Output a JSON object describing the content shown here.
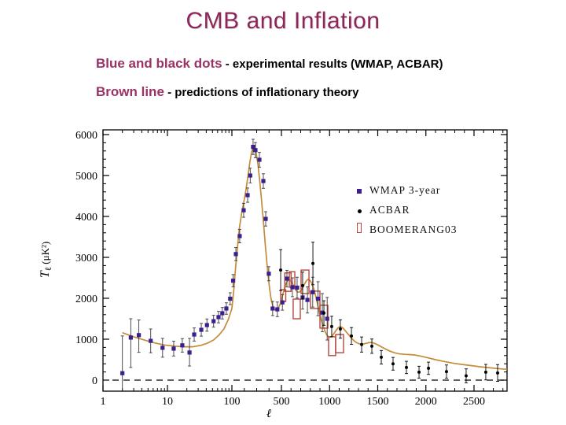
{
  "slide": {
    "title": "CMB and Inflation",
    "bullets": [
      {
        "lead": "Blue and black dots",
        "rest": " - experimental results (WMAP, ACBAR)"
      },
      {
        "lead": "Brown line",
        "rest": " - predictions of inflationary theory"
      }
    ]
  },
  "colors": {
    "title": "#8e2659",
    "lead": "#993366",
    "text": "#000000",
    "axis": "#000000",
    "wmap": "#3b1f8e",
    "acbar": "#000000",
    "boomerang": "#b4483c",
    "theory": "#c68b3a",
    "errorbar": "#3a3a3a"
  },
  "chart_data": {
    "type": "scatter",
    "title": "",
    "xlabel": "ℓ",
    "ylabel": {
      "symbol": "T",
      "sub": "ℓ",
      "units": "(μK²)"
    },
    "x_axis": {
      "scale": "log from 1 to 100, linear above 100",
      "major_ticks": [
        1,
        10,
        100,
        500,
        1000,
        1500,
        2000,
        2500
      ],
      "range": [
        1,
        2850
      ],
      "grid": false
    },
    "y_axis": {
      "major_ticks": [
        0,
        1000,
        2000,
        3000,
        4000,
        5000,
        6000
      ],
      "minor_step": 200,
      "range": [
        -270,
        6100
      ],
      "grid": false
    },
    "zero_line": {
      "style": "dashed",
      "y": 0
    },
    "legend_position": "upper right",
    "series": [
      {
        "name": "WMAP 3-year",
        "marker": "square",
        "color": "#3b1f8e",
        "points_format": [
          "l",
          "value_uK2",
          "err_up",
          "err_down"
        ],
        "points": [
          [
            2,
            170,
            910,
            640
          ],
          [
            2.7,
            1040,
            460,
            730
          ],
          [
            3.6,
            1100,
            370,
            420
          ],
          [
            5.5,
            960,
            290,
            290
          ],
          [
            8.4,
            790,
            230,
            230
          ],
          [
            12.5,
            770,
            180,
            180
          ],
          [
            17,
            850,
            165,
            165
          ],
          [
            22,
            675,
            345,
            330
          ],
          [
            26,
            1115,
            160,
            160
          ],
          [
            33.5,
            1230,
            155,
            155
          ],
          [
            41,
            1345,
            150,
            150
          ],
          [
            52,
            1440,
            145,
            145
          ],
          [
            62,
            1540,
            140,
            140
          ],
          [
            71,
            1635,
            140,
            140
          ],
          [
            82,
            1750,
            140,
            140
          ],
          [
            94,
            1990,
            145,
            145
          ],
          [
            110,
            2430,
            150,
            150
          ],
          [
            132,
            3080,
            160,
            160
          ],
          [
            163,
            3520,
            165,
            165
          ],
          [
            195,
            4150,
            170,
            170
          ],
          [
            227,
            4520,
            175,
            175
          ],
          [
            248,
            5000,
            180,
            180
          ],
          [
            271,
            5700,
            185,
            185
          ],
          [
            290,
            5620,
            185,
            185
          ],
          [
            322,
            5385,
            180,
            180
          ],
          [
            354,
            4865,
            178,
            178
          ],
          [
            373,
            3940,
            175,
            175
          ],
          [
            398,
            2600,
            172,
            172
          ],
          [
            429,
            1750,
            172,
            172
          ],
          [
            467,
            1730,
            178,
            178
          ],
          [
            510,
            1900,
            190,
            190
          ],
          [
            557,
            2480,
            205,
            205
          ],
          [
            614,
            2270,
            230,
            230
          ],
          [
            663,
            2260,
            255,
            255
          ],
          [
            720,
            2020,
            285,
            285
          ],
          [
            770,
            1960,
            320,
            320
          ],
          [
            825,
            2150,
            365,
            365
          ],
          [
            880,
            1990,
            415,
            415
          ],
          [
            925,
            1650,
            465,
            465
          ],
          [
            975,
            1500,
            520,
            520
          ]
        ]
      },
      {
        "name": "ACBAR",
        "marker": "dot",
        "color": "#000000",
        "points_format": [
          "l",
          "value_uK2",
          "err"
        ],
        "points": [
          [
            494,
            2690,
            500
          ],
          [
            720,
            2310,
            330
          ],
          [
            827,
            2850,
            520
          ],
          [
            941,
            1640,
            300
          ],
          [
            1022,
            1310,
            250
          ],
          [
            1112,
            1250,
            225
          ],
          [
            1227,
            1080,
            205
          ],
          [
            1333,
            870,
            185
          ],
          [
            1439,
            830,
            175
          ],
          [
            1537,
            560,
            165
          ],
          [
            1659,
            400,
            155
          ],
          [
            1798,
            310,
            150
          ],
          [
            1929,
            195,
            145
          ],
          [
            2027,
            290,
            150
          ],
          [
            2214,
            210,
            160
          ],
          [
            2418,
            105,
            170
          ],
          [
            2622,
            195,
            190
          ],
          [
            2745,
            175,
            205
          ]
        ]
      },
      {
        "name": "BOOMERANG03",
        "marker": "open-box",
        "color": "#b4483c",
        "boxes_format": [
          "l_min",
          "l_max",
          "value_min",
          "value_max"
        ],
        "boxes": [
          [
            494,
            545,
            1920,
            2210
          ],
          [
            535,
            600,
            2170,
            2620
          ],
          [
            582,
            639,
            2270,
            2650
          ],
          [
            622,
            696,
            1500,
            1980
          ],
          [
            704,
            786,
            2115,
            2690
          ],
          [
            802,
            900,
            1750,
            2175
          ],
          [
            900,
            982,
            1270,
            1830
          ],
          [
            990,
            1063,
            600,
            1060
          ],
          [
            1063,
            1145,
            670,
            1115
          ]
        ]
      },
      {
        "name": "inflationary theory prediction",
        "type": "line",
        "color": "#c68b3a",
        "points": [
          [
            2,
            1160
          ],
          [
            3,
            1060
          ],
          [
            4.5,
            975
          ],
          [
            6.5,
            905
          ],
          [
            9,
            860
          ],
          [
            13,
            830
          ],
          [
            18,
            815
          ],
          [
            25,
            815
          ],
          [
            33,
            850
          ],
          [
            42,
            905
          ],
          [
            52,
            980
          ],
          [
            63,
            1100
          ],
          [
            75,
            1250
          ],
          [
            88,
            1480
          ],
          [
            100,
            1750
          ],
          [
            115,
            2200
          ],
          [
            130,
            2750
          ],
          [
            145,
            3250
          ],
          [
            160,
            3700
          ],
          [
            180,
            4100
          ],
          [
            200,
            4420
          ],
          [
            215,
            4680
          ],
          [
            230,
            4990
          ],
          [
            245,
            5320
          ],
          [
            258,
            5560
          ],
          [
            270,
            5680
          ],
          [
            282,
            5680
          ],
          [
            295,
            5560
          ],
          [
            310,
            5280
          ],
          [
            325,
            4870
          ],
          [
            340,
            4380
          ],
          [
            355,
            3850
          ],
          [
            370,
            3300
          ],
          [
            385,
            2780
          ],
          [
            400,
            2340
          ],
          [
            415,
            2010
          ],
          [
            430,
            1810
          ],
          [
            445,
            1720
          ],
          [
            460,
            1710
          ],
          [
            475,
            1760
          ],
          [
            490,
            1860
          ],
          [
            505,
            2000
          ],
          [
            520,
            2140
          ],
          [
            535,
            2270
          ],
          [
            550,
            2370
          ],
          [
            565,
            2430
          ],
          [
            580,
            2450
          ],
          [
            595,
            2430
          ],
          [
            610,
            2380
          ],
          [
            625,
            2310
          ],
          [
            640,
            2240
          ],
          [
            655,
            2180
          ],
          [
            670,
            2150
          ],
          [
            685,
            2150
          ],
          [
            700,
            2180
          ],
          [
            715,
            2230
          ],
          [
            730,
            2300
          ],
          [
            745,
            2370
          ],
          [
            760,
            2430
          ],
          [
            775,
            2460
          ],
          [
            790,
            2450
          ],
          [
            805,
            2410
          ],
          [
            820,
            2340
          ],
          [
            835,
            2240
          ],
          [
            850,
            2110
          ],
          [
            865,
            1960
          ],
          [
            880,
            1800
          ],
          [
            895,
            1640
          ],
          [
            910,
            1500
          ],
          [
            925,
            1380
          ],
          [
            940,
            1280
          ],
          [
            955,
            1180
          ],
          [
            970,
            1110
          ],
          [
            985,
            1070
          ],
          [
            1000,
            1050
          ],
          [
            1015,
            1055
          ],
          [
            1030,
            1090
          ],
          [
            1045,
            1140
          ],
          [
            1060,
            1190
          ],
          [
            1075,
            1240
          ],
          [
            1090,
            1280
          ],
          [
            1105,
            1300
          ],
          [
            1120,
            1300
          ],
          [
            1135,
            1280
          ],
          [
            1155,
            1230
          ],
          [
            1180,
            1160
          ],
          [
            1205,
            1090
          ],
          [
            1230,
            1020
          ],
          [
            1255,
            960
          ],
          [
            1280,
            915
          ],
          [
            1305,
            890
          ],
          [
            1330,
            880
          ],
          [
            1355,
            885
          ],
          [
            1380,
            900
          ],
          [
            1405,
            915
          ],
          [
            1430,
            920
          ],
          [
            1455,
            910
          ],
          [
            1480,
            885
          ],
          [
            1510,
            850
          ],
          [
            1545,
            805
          ],
          [
            1585,
            755
          ],
          [
            1630,
            705
          ],
          [
            1680,
            665
          ],
          [
            1730,
            640
          ],
          [
            1780,
            630
          ],
          [
            1830,
            625
          ],
          [
            1880,
            615
          ],
          [
            1930,
            595
          ],
          [
            1980,
            570
          ],
          [
            2040,
            535
          ],
          [
            2100,
            500
          ],
          [
            2180,
            460
          ],
          [
            2270,
            420
          ],
          [
            2370,
            385
          ],
          [
            2470,
            355
          ],
          [
            2570,
            325
          ],
          [
            2670,
            300
          ],
          [
            2780,
            275
          ],
          [
            2850,
            265
          ]
        ]
      }
    ]
  }
}
